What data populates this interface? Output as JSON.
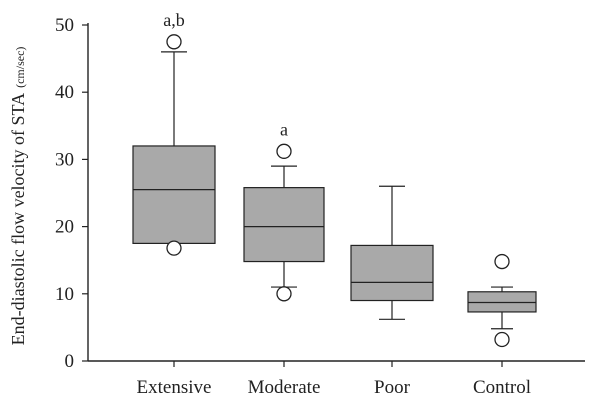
{
  "chart_data": {
    "type": "box",
    "title": "",
    "xlabel": "",
    "ylabel": "End-diastolic flow velocity of STA",
    "ylabel_unit": "(cm/sec)",
    "ylim": [
      0,
      50
    ],
    "yticks": [
      "0",
      "10",
      "20",
      "30",
      "40",
      "50"
    ],
    "grid": false,
    "categories": [
      "Extensive",
      "Moderate",
      "Poor",
      "Control"
    ],
    "boxes": [
      {
        "category": "Extensive",
        "whisker_low": 17.5,
        "q1": 17.5,
        "median": 25.5,
        "q3": 32,
        "whisker_high": 46,
        "outliers": [
          47.5,
          16.8
        ],
        "annotation": "a,b"
      },
      {
        "category": "Moderate",
        "whisker_low": 11,
        "q1": 14.8,
        "median": 20,
        "q3": 25.8,
        "whisker_high": 29,
        "outliers": [
          31.2,
          10
        ],
        "annotation": "a"
      },
      {
        "category": "Poor",
        "whisker_low": 6.2,
        "q1": 9,
        "median": 11.7,
        "q3": 17.2,
        "whisker_high": 26,
        "outliers": [],
        "annotation": ""
      },
      {
        "category": "Control",
        "whisker_low": 4.8,
        "q1": 7.3,
        "median": 8.7,
        "q3": 10.3,
        "whisker_high": 11,
        "outliers": [
          14.8,
          3.2
        ],
        "annotation": ""
      }
    ]
  }
}
